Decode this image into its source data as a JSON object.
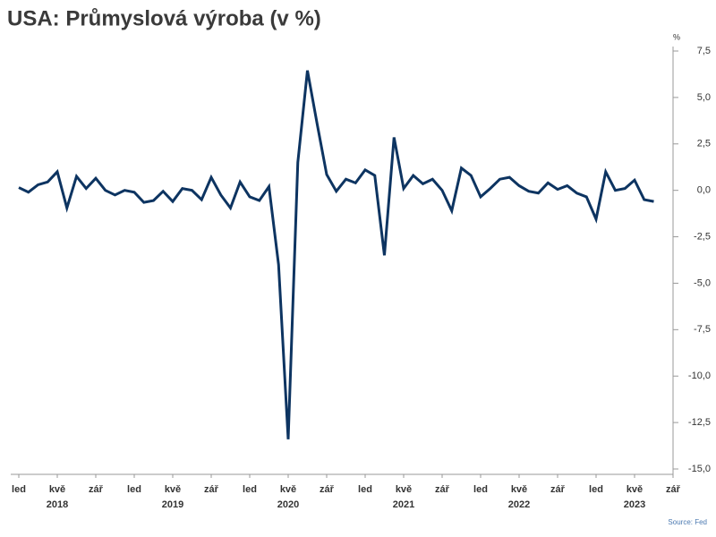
{
  "chart_data": {
    "type": "line",
    "title": "USA: Průmyslová výroba (v %)",
    "y_unit": "%",
    "source": "Source: Fed",
    "x": [
      "2018-01",
      "2018-02",
      "2018-03",
      "2018-04",
      "2018-05",
      "2018-06",
      "2018-07",
      "2018-08",
      "2018-09",
      "2018-10",
      "2018-11",
      "2018-12",
      "2019-01",
      "2019-02",
      "2019-03",
      "2019-04",
      "2019-05",
      "2019-06",
      "2019-07",
      "2019-08",
      "2019-09",
      "2019-10",
      "2019-11",
      "2019-12",
      "2020-01",
      "2020-02",
      "2020-03",
      "2020-04",
      "2020-05",
      "2020-06",
      "2020-07",
      "2020-08",
      "2020-09",
      "2020-10",
      "2020-11",
      "2020-12",
      "2021-01",
      "2021-02",
      "2021-03",
      "2021-04",
      "2021-05",
      "2021-06",
      "2021-07",
      "2021-08",
      "2021-09",
      "2021-10",
      "2021-11",
      "2021-12",
      "2022-01",
      "2022-02",
      "2022-03",
      "2022-04",
      "2022-05",
      "2022-06",
      "2022-07",
      "2022-08",
      "2022-09",
      "2022-10",
      "2022-11",
      "2022-12",
      "2023-01",
      "2023-02",
      "2023-03",
      "2023-04",
      "2023-05",
      "2023-06",
      "2023-07"
    ],
    "series": [
      {
        "color": "#0d3461",
        "values": [
          0.15,
          -0.1,
          0.3,
          0.45,
          1.0,
          -0.95,
          0.75,
          0.1,
          0.65,
          0.0,
          -0.25,
          0.0,
          -0.1,
          -0.65,
          -0.55,
          -0.05,
          -0.6,
          0.1,
          0.0,
          -0.5,
          0.7,
          -0.25,
          -0.95,
          0.45,
          -0.35,
          -0.55,
          0.2,
          -4.0,
          -13.4,
          1.5,
          6.45,
          3.6,
          0.85,
          -0.05,
          0.6,
          0.4,
          1.1,
          0.8,
          -3.5,
          2.85,
          0.1,
          0.8,
          0.35,
          0.6,
          0.0,
          -1.1,
          1.2,
          0.8,
          -0.35,
          0.1,
          0.6,
          0.7,
          0.25,
          -0.05,
          -0.15,
          0.4,
          0.05,
          0.25,
          -0.15,
          -0.35,
          -1.55,
          1.0,
          0.0,
          0.1,
          0.55,
          -0.5,
          -0.6
        ]
      }
    ],
    "xlim": [
      "2018-01",
      "2023-09"
    ],
    "xticks": [
      {
        "value": "2018-01",
        "label": "led"
      },
      {
        "value": "2018-05",
        "label": "kvě"
      },
      {
        "value": "2018-09",
        "label": "zář"
      },
      {
        "value": "2019-01",
        "label": "led"
      },
      {
        "value": "2019-05",
        "label": "kvě"
      },
      {
        "value": "2019-09",
        "label": "zář"
      },
      {
        "value": "2020-01",
        "label": "led"
      },
      {
        "value": "2020-05",
        "label": "kvě"
      },
      {
        "value": "2020-09",
        "label": "zář"
      },
      {
        "value": "2021-01",
        "label": "led"
      },
      {
        "value": "2021-05",
        "label": "kvě"
      },
      {
        "value": "2021-09",
        "label": "zář"
      },
      {
        "value": "2022-01",
        "label": "led"
      },
      {
        "value": "2022-05",
        "label": "kvě"
      },
      {
        "value": "2022-09",
        "label": "zář"
      },
      {
        "value": "2023-01",
        "label": "led"
      },
      {
        "value": "2023-05",
        "label": "kvě"
      },
      {
        "value": "2023-09",
        "label": "zář"
      }
    ],
    "year_labels": [
      {
        "value": "2018-05",
        "label": "2018"
      },
      {
        "value": "2019-05",
        "label": "2019"
      },
      {
        "value": "2020-05",
        "label": "2020"
      },
      {
        "value": "2021-05",
        "label": "2021"
      },
      {
        "value": "2022-05",
        "label": "2022"
      },
      {
        "value": "2023-05",
        "label": "2023"
      }
    ],
    "ylim": [
      -15,
      7.5
    ],
    "yticks": [
      {
        "value": -15,
        "label": "-15,0"
      },
      {
        "value": -12.5,
        "label": "-12,5"
      },
      {
        "value": -10,
        "label": "-10,0"
      },
      {
        "value": -7.5,
        "label": "-7,5"
      },
      {
        "value": -5,
        "label": "-5,0"
      },
      {
        "value": -2.5,
        "label": "-2,5"
      },
      {
        "value": 0,
        "label": "0,0"
      },
      {
        "value": 2.5,
        "label": "2,5"
      },
      {
        "value": 5,
        "label": "5,0"
      },
      {
        "value": 7.5,
        "label": "7,5"
      }
    ],
    "y_axis_side": "right"
  }
}
